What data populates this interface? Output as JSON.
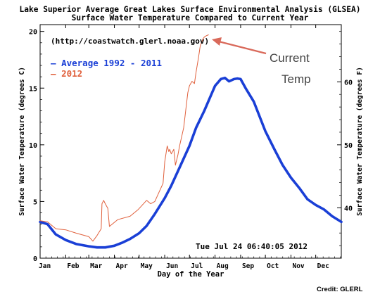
{
  "chart_data": {
    "type": "line",
    "title": "Lake Superior Average Great Lakes Surface Environmental Analysis (GLSEA)",
    "subtitle": "Surface Water Temperature Compared to Current Year",
    "source_url": "(http://coastwatch.glerl.noaa.gov)",
    "xlabel": "Day of the Year",
    "ylabel": "Surface Water Temperature (degrees C)",
    "y2label": "Surface Water Temperature (degrees F)",
    "timestamp": "Tue Jul 24 06:40:05 2012",
    "credit": "Credit: GLERL",
    "annotation": {
      "line1": "Current",
      "line2": "Temp"
    },
    "legend_placement": "top-left",
    "xlim": [
      1,
      366
    ],
    "ylim": [
      0,
      20.6
    ],
    "x_ticks": [
      {
        "label": "Jan",
        "day": 1
      },
      {
        "label": "Feb",
        "day": 32
      },
      {
        "label": "Mar",
        "day": 60
      },
      {
        "label": "Apr",
        "day": 91
      },
      {
        "label": "May",
        "day": 121
      },
      {
        "label": "Jun",
        "day": 152
      },
      {
        "label": "Jul",
        "day": 182
      },
      {
        "label": "Aug",
        "day": 213
      },
      {
        "label": "Sep",
        "day": 244
      },
      {
        "label": "Oct",
        "day": 274
      },
      {
        "label": "Nov",
        "day": 305
      },
      {
        "label": "Dec",
        "day": 335
      }
    ],
    "y_ticks": [
      0,
      5,
      10,
      15,
      20
    ],
    "y2_ticks": [
      {
        "label": "40",
        "fahrenheit": 40
      },
      {
        "label": "50",
        "fahrenheit": 50
      },
      {
        "label": "60",
        "fahrenheit": 60
      }
    ],
    "series": [
      {
        "name": "Average 1992 - 2011",
        "color": "#1a3fd6",
        "x": [
          1,
          10,
          20,
          32,
          45,
          60,
          70,
          80,
          91,
          100,
          110,
          121,
          130,
          140,
          152,
          160,
          170,
          182,
          190,
          200,
          210,
          213,
          220,
          225,
          230,
          236,
          240,
          244,
          250,
          260,
          274,
          285,
          295,
          305,
          315,
          325,
          335,
          345,
          355,
          366
        ],
        "y": [
          3.2,
          3.0,
          2.1,
          1.6,
          1.25,
          1.05,
          0.95,
          0.95,
          1.1,
          1.35,
          1.7,
          2.2,
          2.85,
          3.9,
          5.3,
          6.4,
          8.0,
          9.9,
          11.5,
          13.0,
          14.7,
          15.2,
          15.8,
          15.9,
          15.6,
          15.8,
          15.85,
          15.8,
          15.0,
          13.8,
          11.2,
          9.6,
          8.2,
          7.1,
          6.2,
          5.2,
          4.7,
          4.3,
          3.7,
          3.2
        ]
      },
      {
        "name": "2012",
        "color": "#e0603c",
        "x": [
          1,
          10,
          20,
          32,
          45,
          60,
          65,
          70,
          75,
          76,
          78,
          80,
          83,
          85,
          95,
          110,
          120,
          130,
          135,
          140,
          150,
          152,
          155,
          157,
          158,
          160,
          163,
          165,
          168,
          170,
          175,
          180,
          182,
          185,
          188,
          190,
          193,
          195,
          198,
          200,
          202,
          205
        ],
        "y": [
          3.3,
          3.2,
          2.6,
          2.5,
          2.2,
          1.9,
          1.5,
          2.0,
          2.6,
          4.8,
          5.1,
          4.8,
          4.4,
          2.8,
          3.4,
          3.7,
          4.3,
          5.1,
          4.8,
          5.0,
          6.6,
          8.5,
          9.9,
          9.4,
          9.6,
          9.2,
          9.6,
          8.2,
          9.1,
          9.9,
          11.5,
          14.6,
          15.2,
          15.6,
          15.4,
          16.4,
          17.7,
          18.7,
          19.3,
          19.5,
          19.6,
          19.7
        ]
      }
    ]
  }
}
